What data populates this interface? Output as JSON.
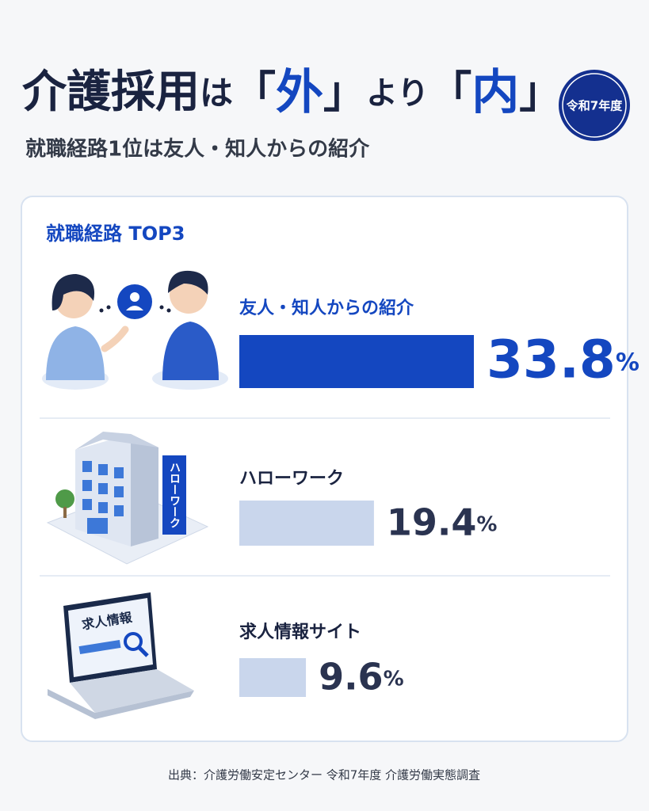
{
  "chart_data": {
    "type": "bar",
    "title": [
      "介護採用",
      "は",
      "「",
      "外",
      "」",
      "より",
      "「",
      "内",
      "」"
    ],
    "badge": "令和7年度",
    "subtitle": "就職経路1位は友人・知人からの紹介",
    "panel_title": "就職経路 TOP3",
    "categories": [
      "友人・知人からの紹介",
      "ハローワーク",
      "求人情報サイト"
    ],
    "values": [
      33.8,
      19.4,
      9.6
    ],
    "value_labels": [
      "33.8%",
      "19.4%",
      "9.6%"
    ],
    "colors": [
      "#1447c0",
      "#c9d6ec",
      "#c9d6ec"
    ],
    "source": "出典：介護労働安定センター 令和7年度 介護労働実態調査",
    "illustrations": {
      "building_sign": "ハローワーク",
      "laptop_screen": "求人情報"
    }
  }
}
